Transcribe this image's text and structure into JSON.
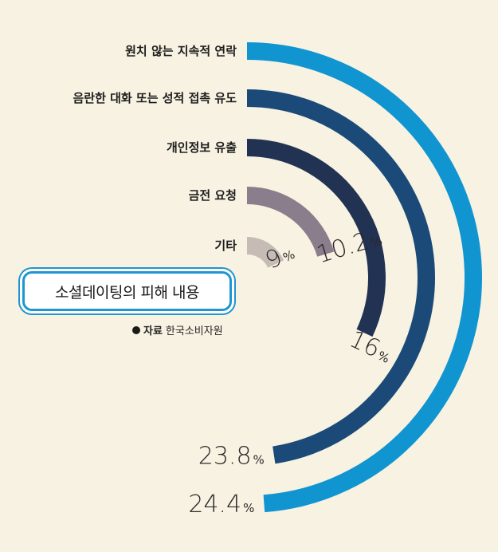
{
  "title": "소셜데이팅의 피해 내용",
  "source": {
    "key": "자료",
    "value": "한국소비자원"
  },
  "chart_data": {
    "type": "radial-bar",
    "title": "소셜데이팅의 피해 내용",
    "unit": "%",
    "categories": [
      "원치 않는 지속적 연락",
      "음란한 대화 또는 성적 접촉 유도",
      "개인정보 유출",
      "금전 요청",
      "기타"
    ],
    "values": [
      24.4,
      23.8,
      16,
      10.2,
      9
    ],
    "value_labels": [
      "24.4",
      "23.8",
      "16",
      "10.2",
      "9"
    ],
    "colors": [
      "#1195d0",
      "#1b4a78",
      "#223252",
      "#8a7e8c",
      "#c6bcb5"
    ]
  }
}
